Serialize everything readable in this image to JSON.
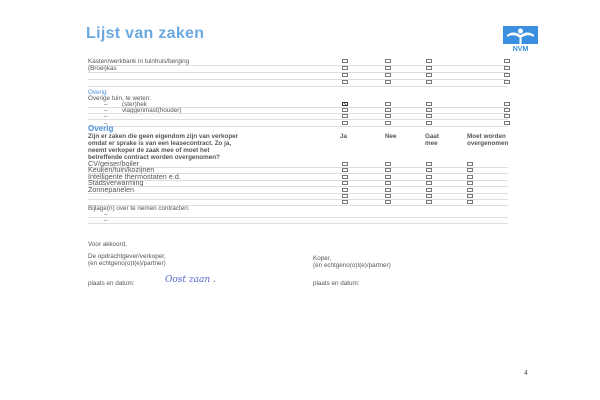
{
  "title": "Lijst van zaken",
  "logo": {
    "text": "NVM",
    "color": "#3a8fe0"
  },
  "section1": {
    "rows": [
      "Kasten/werkbank in tuinhuis/berging",
      "(Broei)kas",
      "",
      ""
    ]
  },
  "section2": {
    "heading": "Overig",
    "intro": "Overige tuin, te weten:",
    "rows": [
      {
        "dash": "–",
        "label": "(ster)hek",
        "checked_ja": true
      },
      {
        "dash": "–",
        "label": "vlaggenmast(houder)"
      },
      {
        "dash": "–",
        "label": ""
      },
      {
        "dash": "–",
        "label": ""
      }
    ]
  },
  "section3": {
    "heading": "Overig",
    "question": [
      "Zijn er zaken die geen eigendom zijn van verkoper",
      "omdat er sprake is van een leasecontract. Zo ja,",
      "neemt verkoper de zaak mee of moet het",
      "betreffende contract worden overgenomen?"
    ],
    "columns": {
      "ja": "Ja",
      "nee": "Nee",
      "gaat": [
        "Gaat",
        "mee"
      ],
      "moet": [
        "Moet worden",
        "overgenomen"
      ]
    },
    "rows": [
      "CV/geiser/boiler",
      "Keuken/tuin/kozijnen",
      "Intelligente thermostaten e.d.",
      "Stadsverwarming",
      "Zonnepanelen",
      "",
      ""
    ],
    "bijlage": "Bijlage(n) over te nemen contracten:",
    "dashes": [
      "–",
      "–"
    ]
  },
  "signature": {
    "voor_akkoord": "Voor akkoord,",
    "seller": [
      "De opdrachtgever/verkoper,",
      "(en echtgeno(o)t(e)/partner)"
    ],
    "buyer": [
      "Koper,",
      "(en echtgeno(o)t(e)/partner)"
    ],
    "place_date_seller": "plaats en datum:",
    "handwritten_place": "Oost zaan .",
    "place_date_buyer": "plaats en datum:"
  },
  "page_number": "4"
}
